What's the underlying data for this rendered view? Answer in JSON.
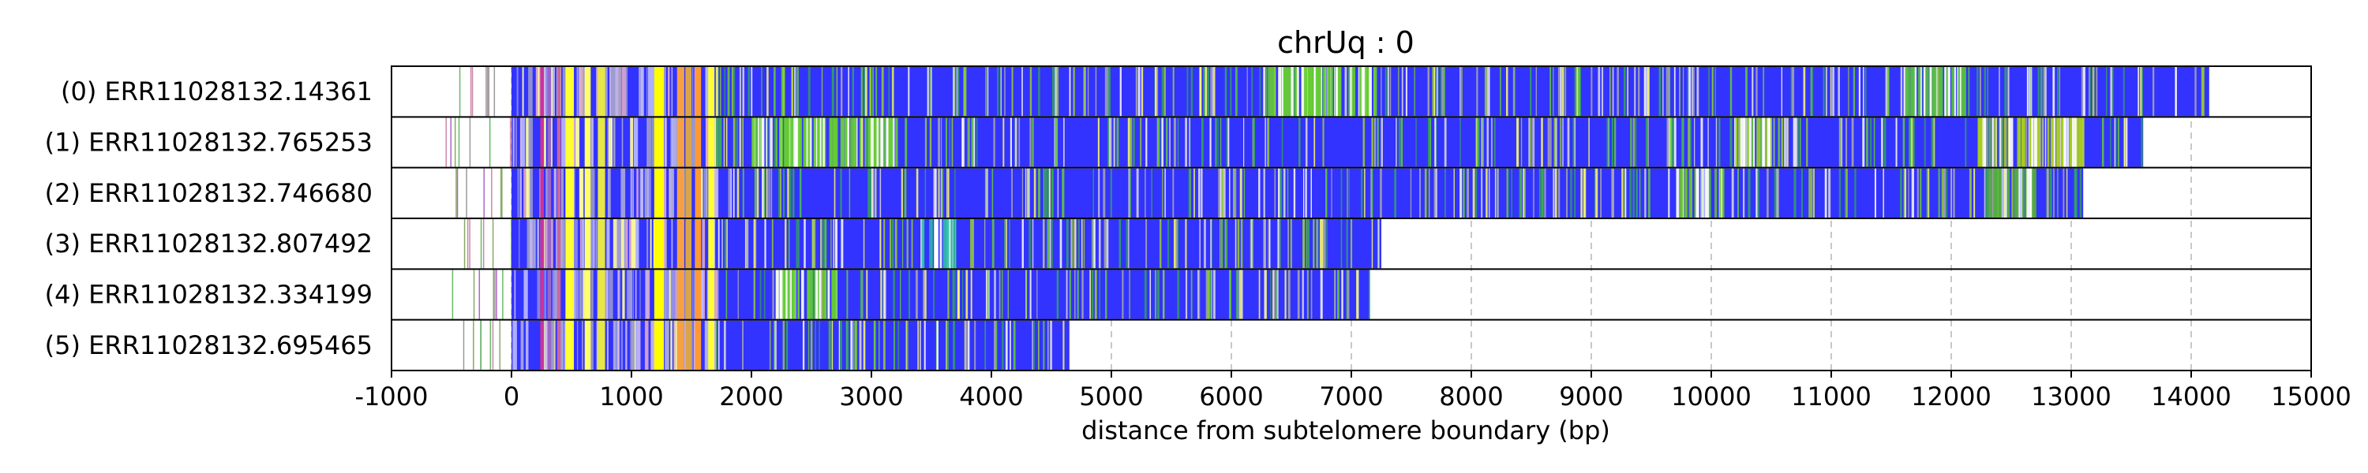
{
  "chart_data": {
    "type": "heatmap",
    "title": "chrUq : 0",
    "xlabel": "distance from subtelomere boundary (bp)",
    "ylabel": "",
    "xlim": [
      -1000,
      15000
    ],
    "x_ticks": [
      -1000,
      0,
      1000,
      2000,
      3000,
      4000,
      5000,
      6000,
      7000,
      8000,
      9000,
      10000,
      11000,
      12000,
      13000,
      14000,
      15000
    ],
    "grid": "vertical dashed at x ticks",
    "base_color": "#3333ff",
    "reads": [
      {
        "label": "(0) ERR11028132.14361",
        "start": -600,
        "end": 14150
      },
      {
        "label": "(1) ERR11028132.765253",
        "start": -550,
        "end": 13600
      },
      {
        "label": "(2) ERR11028132.746680",
        "start": -500,
        "end": 13100
      },
      {
        "label": "(3) ERR11028132.807492",
        "start": -500,
        "end": 7250
      },
      {
        "label": "(4) ERR11028132.334199",
        "start": -500,
        "end": 7150
      },
      {
        "label": "(5) ERR11028132.695465",
        "start": -500,
        "end": 4650
      }
    ],
    "shared_bands": [
      {
        "start": 450,
        "end": 520,
        "color": "#ffff33"
      },
      {
        "start": 610,
        "end": 660,
        "color": "#ffff66"
      },
      {
        "start": 720,
        "end": 780,
        "color": "#e6e645"
      },
      {
        "start": 1190,
        "end": 1270,
        "color": "#ffff00"
      },
      {
        "start": 1380,
        "end": 1440,
        "color": "#f5a142"
      },
      {
        "start": 1450,
        "end": 1500,
        "color": "#d9a54a"
      },
      {
        "start": 1530,
        "end": 1580,
        "color": "#ff9933"
      },
      {
        "start": 1640,
        "end": 1690,
        "color": "#ffff33"
      },
      {
        "start": 240,
        "end": 270,
        "color": "#cc3399"
      },
      {
        "start": 300,
        "end": 330,
        "color": "#9966cc"
      },
      {
        "start": 380,
        "end": 410,
        "color": "#cc6699"
      }
    ],
    "variant_zones": [
      {
        "read": 0,
        "start": 6300,
        "end": 7200,
        "color": "#66cc33"
      },
      {
        "read": 0,
        "start": 11600,
        "end": 12200,
        "color": "#55bb44"
      },
      {
        "read": 1,
        "start": 2000,
        "end": 3200,
        "color": "#66cc33"
      },
      {
        "read": 1,
        "start": 10200,
        "end": 10500,
        "color": "#99cc33"
      },
      {
        "read": 1,
        "start": 12200,
        "end": 13100,
        "color": "#aacc22"
      },
      {
        "read": 2,
        "start": 9700,
        "end": 10100,
        "color": "#66bb33"
      },
      {
        "read": 2,
        "start": 12300,
        "end": 12700,
        "color": "#55aa44"
      },
      {
        "read": 3,
        "start": 3400,
        "end": 3700,
        "color": "#33bbaa"
      },
      {
        "read": 4,
        "start": 2200,
        "end": 2700,
        "color": "#66cc33"
      }
    ]
  }
}
